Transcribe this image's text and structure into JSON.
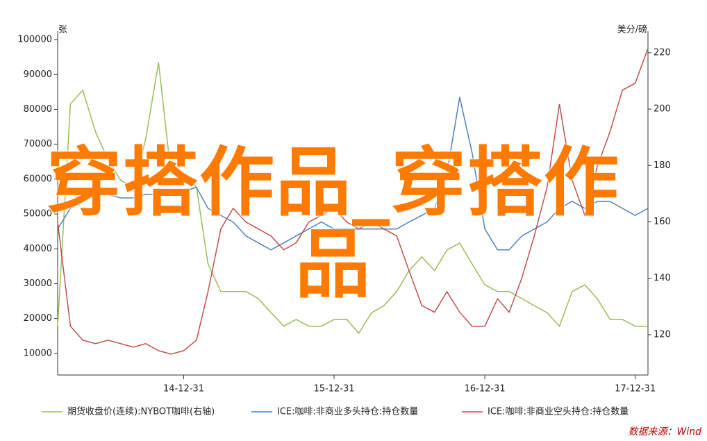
{
  "chart_data": {
    "type": "line",
    "y_label": "张",
    "y2_label": "美分/磅",
    "watermark": "穿搭作品_穿搭作品",
    "source": "数据来源：Wind",
    "x": [
      "14-02-28",
      "14-03-31",
      "14-04-30",
      "14-05-31",
      "14-06-30",
      "14-07-31",
      "14-08-31",
      "14-09-30",
      "14-10-31",
      "14-11-30",
      "14-12-31",
      "15-01-31",
      "15-02-28",
      "15-03-31",
      "15-04-30",
      "15-05-31",
      "15-06-30",
      "15-07-31",
      "15-08-31",
      "15-09-30",
      "15-10-31",
      "15-11-30",
      "15-12-31",
      "16-01-31",
      "16-02-29",
      "16-03-31",
      "16-04-30",
      "16-05-31",
      "16-06-30",
      "16-07-31",
      "16-08-31",
      "16-09-30",
      "16-10-31",
      "16-11-30",
      "16-12-31",
      "17-01-31",
      "17-02-28",
      "17-03-31",
      "17-04-30",
      "17-05-31",
      "17-06-30",
      "17-07-31",
      "17-08-31",
      "17-09-30",
      "17-10-31",
      "17-11-30",
      "17-12-31",
      "18-01-31"
    ],
    "xlim": [
      "14-02-28",
      "18-01-31"
    ],
    "xticks": [
      "14-12-31",
      "15-12-31",
      "16-12-31",
      "17-12-31"
    ],
    "ylim": [
      3800,
      102400
    ],
    "yticks": [
      10000,
      20000,
      30000,
      40000,
      50000,
      60000,
      70000,
      80000,
      90000,
      100000
    ],
    "y2lim": [
      105.7,
      227.6
    ],
    "y2ticks": [
      120,
      140,
      160,
      180,
      200,
      220
    ],
    "series": [
      {
        "name": "期货收盘价(连续):NYBOT咖啡(右轴)",
        "color": "#9bbb59",
        "axis": "y2",
        "values": [
          123.0,
          201.8,
          206.7,
          191.9,
          182.1,
          174.7,
          172.3,
          189.5,
          216.6,
          177.1,
          177.1,
          172.3,
          145.1,
          135.3,
          135.3,
          135.3,
          132.8,
          127.8,
          123.0,
          125.4,
          123.0,
          123.0,
          125.4,
          125.4,
          120.5,
          127.8,
          130.3,
          135.3,
          142.7,
          147.6,
          142.7,
          150.0,
          152.5,
          145.1,
          137.7,
          135.3,
          135.3,
          132.8,
          130.3,
          127.8,
          123.0,
          135.3,
          137.7,
          132.8,
          125.4,
          125.4,
          123.0,
          123.0
        ]
      },
      {
        "name": "ICE:咖啡:非商业多头持仓:持仓数量",
        "color": "#4f81bd",
        "values": [
          45700,
          51600,
          53600,
          55600,
          55600,
          54600,
          54600,
          55600,
          55600,
          55600,
          56600,
          57600,
          51600,
          49600,
          47700,
          43700,
          41700,
          39700,
          41700,
          43700,
          45700,
          47700,
          45700,
          45700,
          45700,
          45700,
          45700,
          45700,
          47700,
          49600,
          51600,
          61600,
          83500,
          67600,
          45700,
          39700,
          39700,
          43700,
          45700,
          47700,
          51600,
          53600,
          51600,
          53600,
          53600,
          51600,
          49600,
          51600
        ]
      },
      {
        "name": "ICE:咖啡:非商业空头持仓:持仓数量",
        "color": "#c0504d",
        "values": [
          47700,
          17800,
          13800,
          12800,
          13800,
          12800,
          11800,
          12800,
          10800,
          9800,
          10800,
          13800,
          27700,
          45700,
          51600,
          47700,
          45700,
          43700,
          39700,
          41700,
          47700,
          49600,
          51600,
          47700,
          45700,
          47700,
          45700,
          43700,
          33700,
          23700,
          21800,
          27700,
          21800,
          17800,
          17800,
          25700,
          21800,
          31700,
          43700,
          57600,
          81500,
          59600,
          49600,
          63600,
          73600,
          85500,
          87500,
          97500
        ]
      }
    ]
  }
}
